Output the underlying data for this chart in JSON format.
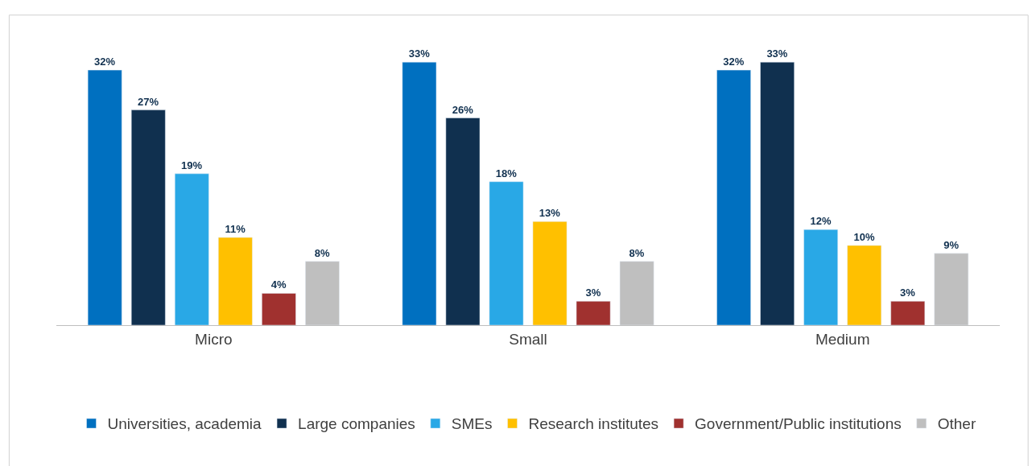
{
  "chart_data": {
    "type": "bar",
    "categories": [
      "Micro",
      "Small",
      "Medium"
    ],
    "series": [
      {
        "name": "Universities, academia",
        "color": "#0070c0",
        "values": [
          32,
          33,
          32
        ],
        "value_labels": [
          "32%",
          "33%",
          "32%"
        ]
      },
      {
        "name": "Large companies",
        "color": "#10304f",
        "values": [
          27,
          26,
          33
        ],
        "value_labels": [
          "27%",
          "26%",
          "33%"
        ]
      },
      {
        "name": "SMEs",
        "color": "#29a8e6",
        "values": [
          19,
          18,
          12
        ],
        "value_labels": [
          "19%",
          "18%",
          "12%"
        ]
      },
      {
        "name": "Research institutes",
        "color": "#ffc000",
        "values": [
          11,
          13,
          10
        ],
        "value_labels": [
          "11%",
          "13%",
          "10%"
        ]
      },
      {
        "name": "Government/Public institutions",
        "color": "#a0312f",
        "values": [
          4,
          3,
          3
        ],
        "value_labels": [
          "4%",
          "3%",
          "3%"
        ]
      },
      {
        "name": "Other",
        "color": "#bfbfbf",
        "values": [
          8,
          8,
          9
        ],
        "value_labels": [
          "8%",
          "8%",
          "9%"
        ]
      }
    ],
    "legend": "bottom"
  }
}
